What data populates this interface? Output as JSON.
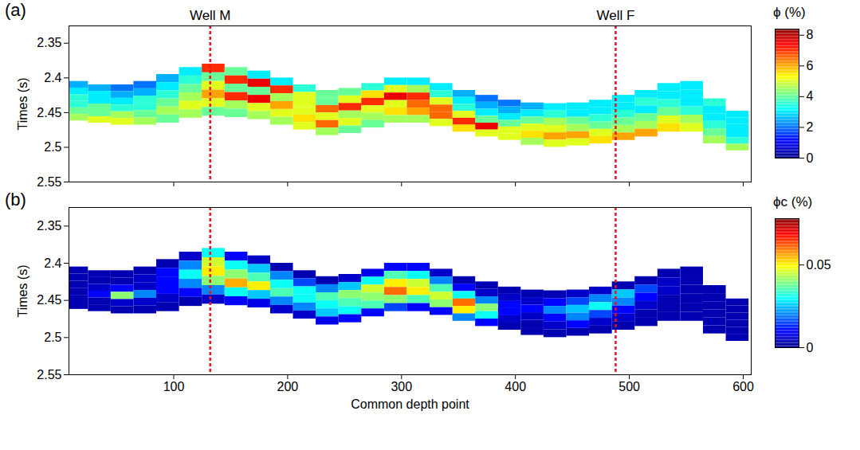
{
  "chart_data": [
    {
      "type": "heatmap",
      "panel_label": "(a)",
      "ylabel": "Times (s)",
      "xlim": [
        8,
        607
      ],
      "xticks": [
        100,
        200,
        300,
        400,
        500,
        600
      ],
      "ylim": [
        2.325,
        2.55
      ],
      "yticks": [
        2.35,
        2.4,
        2.45,
        2.5,
        2.55
      ],
      "tick_labels": "y",
      "wells": [
        {
          "name": "Well M",
          "cdp": 132
        },
        {
          "name": "Well F",
          "cdp": 488
        }
      ],
      "colorbar": {
        "label": "ϕ (%)",
        "range": [
          0,
          8.4
        ],
        "ticks": [
          0,
          2,
          4,
          6,
          8
        ]
      },
      "cdp_edges": [
        5,
        25,
        45,
        65,
        85,
        105,
        125,
        145,
        165,
        185,
        205,
        225,
        245,
        265,
        285,
        305,
        325,
        345,
        365,
        385,
        405,
        425,
        445,
        465,
        485,
        505,
        525,
        545,
        565,
        585,
        605
      ],
      "top": [
        2.405,
        2.41,
        2.41,
        2.405,
        2.395,
        2.385,
        2.38,
        2.385,
        2.39,
        2.4,
        2.41,
        2.418,
        2.415,
        2.408,
        2.4,
        2.4,
        2.408,
        2.418,
        2.425,
        2.432,
        2.436,
        2.437,
        2.436,
        2.432,
        2.425,
        2.418,
        2.408,
        2.405,
        2.43,
        2.448
      ],
      "bottom": [
        2.462,
        2.465,
        2.468,
        2.468,
        2.465,
        2.458,
        2.455,
        2.457,
        2.46,
        2.468,
        2.475,
        2.483,
        2.48,
        2.472,
        2.465,
        2.465,
        2.47,
        2.478,
        2.485,
        2.49,
        2.497,
        2.5,
        2.498,
        2.495,
        2.49,
        2.485,
        2.478,
        2.478,
        2.495,
        2.505
      ],
      "layers": [
        [
          2.5,
          2.5,
          2,
          2,
          2.5,
          3,
          7,
          4,
          3,
          3,
          3.5,
          4,
          4,
          3.5,
          3,
          3,
          3,
          2.5,
          2,
          2,
          2.5,
          3,
          3,
          3,
          3,
          3,
          3,
          3,
          3.5,
          3
        ],
        [
          3,
          3,
          2.5,
          2.5,
          3,
          3.5,
          4,
          7,
          7.5,
          7,
          5,
          4,
          5,
          5.5,
          5,
          4.5,
          3.5,
          3,
          2.5,
          2.5,
          3,
          3.5,
          3,
          3,
          3,
          3.5,
          3,
          3,
          3,
          3
        ],
        [
          3.5,
          3,
          3,
          3.5,
          3.5,
          4,
          5,
          4,
          4,
          4.5,
          5,
          6.5,
          7,
          7,
          7.5,
          7,
          5,
          3.5,
          3,
          3,
          4,
          4.5,
          4,
          3.5,
          3.5,
          3,
          3.5,
          3,
          3,
          3
        ],
        [
          3.5,
          4,
          3.5,
          3.5,
          4,
          4.5,
          6,
          7,
          7.5,
          6,
          5,
          5,
          4.5,
          5,
          5,
          6.5,
          6.5,
          5,
          4,
          4,
          5,
          5,
          4.5,
          4,
          4,
          4,
          4,
          3.5,
          3.5,
          3
        ],
        [
          4,
          4,
          4.5,
          4,
          4.5,
          5,
          5,
          4.5,
          5,
          5,
          5.5,
          6.5,
          5,
          4.5,
          5.5,
          6,
          6.5,
          7,
          7.5,
          5,
          5.5,
          6,
          6,
          5,
          4.5,
          4.5,
          5,
          4.5,
          4,
          3.5
        ],
        [
          4.5,
          5,
          5,
          4.5,
          4,
          4.5,
          4,
          4,
          4.5,
          4.5,
          5,
          4.5,
          4,
          4,
          4.5,
          4.5,
          5,
          5.5,
          5,
          5,
          4.5,
          5,
          5,
          5.5,
          6,
          6,
          5.5,
          5,
          4.5,
          4.5
        ]
      ]
    },
    {
      "type": "heatmap",
      "panel_label": "(b)",
      "ylabel": "Times (s)",
      "xlabel": "Common depth point",
      "xlim": [
        8,
        607
      ],
      "xticks": [
        100,
        200,
        300,
        400,
        500,
        600
      ],
      "ylim": [
        2.325,
        2.55
      ],
      "yticks": [
        2.35,
        2.4,
        2.45,
        2.5,
        2.55
      ],
      "wells": [
        {
          "cdp": 132
        },
        {
          "cdp": 488
        }
      ],
      "colorbar": {
        "label": "ϕc (%)",
        "range": [
          0,
          0.078
        ],
        "ticks": [
          0,
          0.05
        ]
      },
      "cdp_edges": [
        5,
        25,
        45,
        65,
        85,
        105,
        125,
        145,
        165,
        185,
        205,
        225,
        245,
        265,
        285,
        305,
        325,
        345,
        365,
        385,
        405,
        425,
        445,
        465,
        485,
        505,
        525,
        545,
        565,
        585,
        605
      ],
      "top": [
        2.405,
        2.41,
        2.41,
        2.405,
        2.395,
        2.385,
        2.38,
        2.385,
        2.39,
        2.4,
        2.41,
        2.418,
        2.415,
        2.408,
        2.4,
        2.4,
        2.408,
        2.418,
        2.425,
        2.432,
        2.436,
        2.437,
        2.436,
        2.432,
        2.425,
        2.418,
        2.408,
        2.405,
        2.43,
        2.448
      ],
      "bottom": [
        2.462,
        2.465,
        2.468,
        2.468,
        2.465,
        2.458,
        2.455,
        2.457,
        2.46,
        2.468,
        2.475,
        2.483,
        2.48,
        2.472,
        2.465,
        2.465,
        2.47,
        2.478,
        2.485,
        2.49,
        2.497,
        2.5,
        2.498,
        2.495,
        2.49,
        2.485,
        2.478,
        2.478,
        2.495,
        2.505
      ],
      "layers": [
        [
          0.003,
          0.003,
          0.003,
          0.003,
          0.003,
          0.005,
          0.03,
          0.01,
          0.005,
          0.003,
          0.003,
          0.003,
          0.005,
          0.008,
          0.01,
          0.01,
          0.005,
          0.003,
          0.003,
          0.003,
          0.003,
          0.003,
          0.005,
          0.005,
          0.003,
          0.003,
          0.003,
          0.003,
          0.003,
          0.003
        ],
        [
          0.003,
          0.003,
          0.003,
          0.005,
          0.01,
          0.02,
          0.045,
          0.03,
          0.025,
          0.02,
          0.015,
          0.02,
          0.025,
          0.03,
          0.035,
          0.03,
          0.02,
          0.01,
          0.005,
          0.005,
          0.005,
          0.01,
          0.015,
          0.02,
          0.025,
          0.015,
          0.005,
          0.003,
          0.003,
          0.003
        ],
        [
          0.003,
          0.005,
          0.01,
          0.005,
          0.01,
          0.03,
          0.05,
          0.04,
          0.035,
          0.03,
          0.03,
          0.035,
          0.04,
          0.045,
          0.05,
          0.045,
          0.035,
          0.03,
          0.02,
          0.01,
          0.01,
          0.02,
          0.025,
          0.03,
          0.02,
          0.01,
          0.005,
          0.003,
          0.003,
          0.003
        ],
        [
          0.003,
          0.01,
          0.04,
          0.02,
          0.01,
          0.02,
          0.04,
          0.055,
          0.05,
          0.035,
          0.03,
          0.03,
          0.035,
          0.04,
          0.06,
          0.05,
          0.045,
          0.06,
          0.04,
          0.01,
          0.005,
          0.01,
          0.02,
          0.015,
          0.01,
          0.005,
          0.003,
          0.003,
          0.003,
          0.003
        ],
        [
          0.003,
          0.003,
          0.005,
          0.005,
          0.005,
          0.01,
          0.02,
          0.03,
          0.025,
          0.02,
          0.02,
          0.025,
          0.03,
          0.035,
          0.04,
          0.035,
          0.04,
          0.05,
          0.03,
          0.005,
          0.003,
          0.005,
          0.01,
          0.005,
          0.005,
          0.003,
          0.003,
          0.003,
          0.003,
          0.003
        ],
        [
          0.003,
          0.003,
          0.003,
          0.003,
          0.003,
          0.003,
          0.005,
          0.01,
          0.008,
          0.005,
          0.005,
          0.008,
          0.01,
          0.01,
          0.015,
          0.01,
          0.01,
          0.02,
          0.01,
          0.003,
          0.003,
          0.003,
          0.003,
          0.003,
          0.003,
          0.003,
          0.003,
          0.003,
          0.003,
          0.003
        ]
      ]
    }
  ]
}
